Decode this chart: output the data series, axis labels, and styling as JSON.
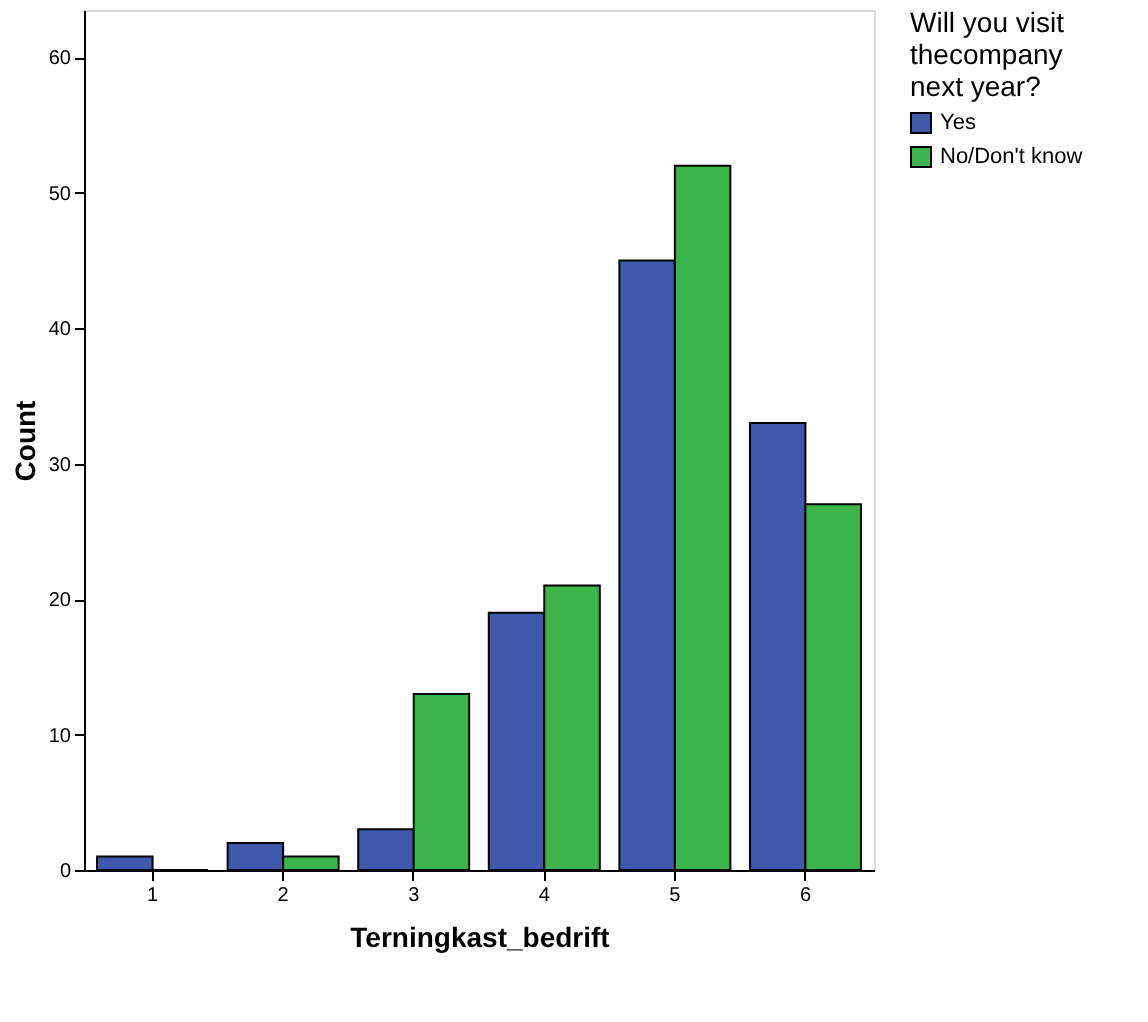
{
  "chart_data": {
    "type": "bar",
    "xlabel": "Terningkast_bedrift",
    "ylabel": "Count",
    "legend_title": "Will you visit\nthecompany\nnext year?",
    "categories": [
      "1",
      "2",
      "3",
      "4",
      "5",
      "6"
    ],
    "series": [
      {
        "name": "Yes",
        "color": "#3e58ac",
        "values": [
          1,
          2,
          3,
          19,
          45,
          33
        ]
      },
      {
        "name": "No/Don't know",
        "color": "#3bb54a",
        "values": [
          0,
          1,
          13,
          21,
          52,
          27
        ]
      }
    ],
    "ylim": [
      0,
      63.5
    ],
    "yticks": [
      0,
      10,
      20,
      30,
      40,
      50,
      60
    ],
    "grid": false,
    "legend": "top right"
  }
}
